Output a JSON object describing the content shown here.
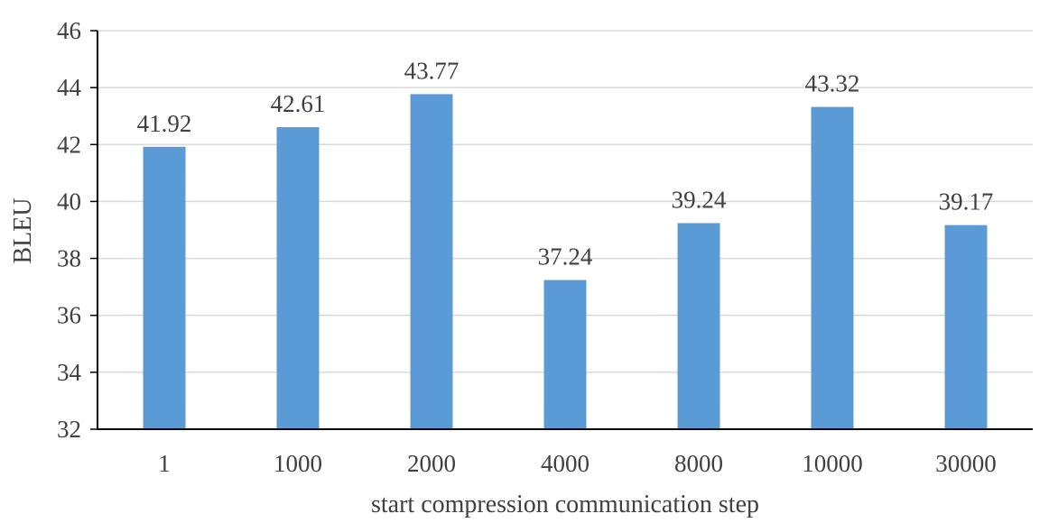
{
  "chart_data": {
    "type": "bar",
    "categories": [
      "1",
      "1000",
      "2000",
      "4000",
      "8000",
      "10000",
      "30000"
    ],
    "values": [
      41.92,
      42.61,
      43.77,
      37.24,
      39.24,
      43.32,
      39.17
    ],
    "data_labels": [
      "41.92",
      "42.61",
      "43.77",
      "37.24",
      "39.24",
      "43.32",
      "39.17"
    ],
    "title": "",
    "xlabel": "start compression communication step",
    "ylabel": "BLEU",
    "ylim": [
      32,
      46
    ],
    "yticks": [
      "32",
      "34",
      "36",
      "38",
      "40",
      "42",
      "44",
      "46"
    ],
    "grid": true,
    "legend": "none",
    "colors": {
      "bar": "#5b9bd5",
      "grid": "#d9d9d9",
      "axis": "#000000",
      "text": "#404040"
    }
  }
}
